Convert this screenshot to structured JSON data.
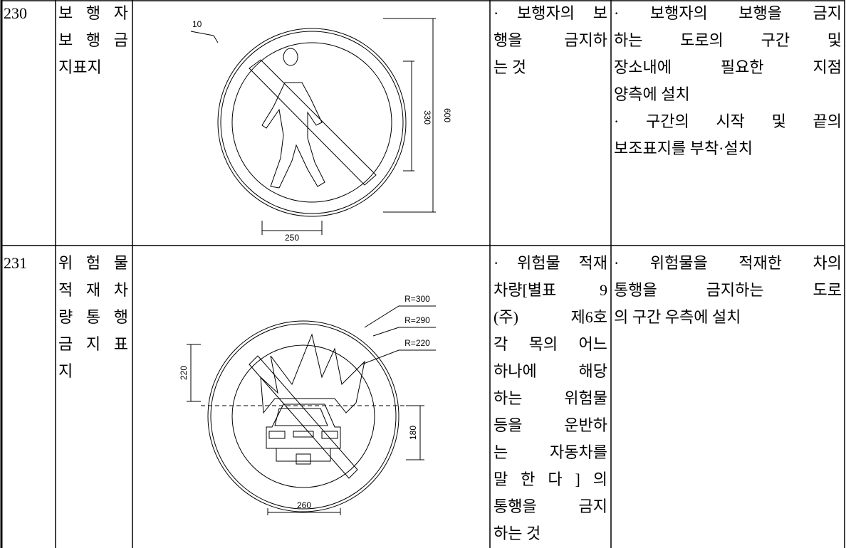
{
  "table": {
    "rows": [
      {
        "number": "230",
        "name": [
          "보 행 자",
          "보 행 금",
          "지표지"
        ],
        "drawing": {
          "labels": [
            "10",
            "330",
            "600",
            "250"
          ]
        },
        "meaning": [
          "· 보행자의 보",
          "행을 금지하",
          "는 것"
        ],
        "installation": [
          "· 보행자의 보행을 금지",
          "하는 도로의 구간 및",
          "장소내에 필요한 지점",
          "양측에 설치",
          "· 구간의 시작 및 끝의",
          "보조표지를 부착·설치"
        ]
      },
      {
        "number": "231",
        "name": [
          "위 험 물",
          "적 재 차",
          "량 통 행",
          "금 지 표",
          "지"
        ],
        "drawing": {
          "labels": [
            "R=300",
            "R=290",
            "R=220",
            "220",
            "180",
            "260"
          ]
        },
        "meaning": [
          "· 위험물 적재",
          "차량[별표 9",
          "(주) 제6호",
          "각 목의 어느",
          "하나에 해당",
          "하는 위험물",
          "등을 운반하",
          "는 자동차를",
          "말 한 다 ] 의",
          "통행을 금지",
          "하는 것"
        ],
        "installation": [
          "· 위험물을 적재한 차의",
          "통행을 금지하는 도로",
          "의 구간 우측에 설치"
        ]
      }
    ]
  }
}
